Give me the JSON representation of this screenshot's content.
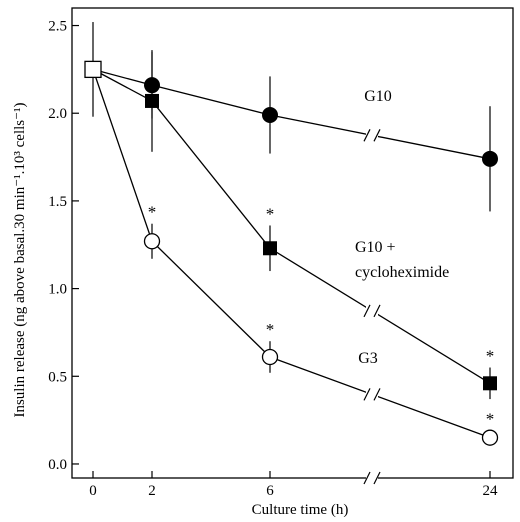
{
  "chart_data": {
    "type": "line",
    "xlabel": "Culture time (h)",
    "ylabel": "Insulin release (ng above  basal.30 min⁻¹.10³ cells⁻¹)",
    "x_ticks": [
      "0",
      "2",
      "6",
      "24"
    ],
    "y_ticks": [
      "0.0",
      "0.5",
      "1.0",
      "1.5",
      "2.0",
      "2.5"
    ],
    "ylim": [
      -0.08,
      2.6
    ],
    "x_axis_break": true,
    "grid": false,
    "initial_point": {
      "x": 0,
      "y": 2.25,
      "yerr": 0.27,
      "marker": "open-square"
    },
    "series": [
      {
        "name": "G10",
        "marker": "filled-circle",
        "points": [
          {
            "x": 2,
            "y": 2.16,
            "yerr": 0.19
          },
          {
            "x": 6,
            "y": 1.99,
            "yerr": 0.22
          },
          {
            "x": 24,
            "y": 1.74,
            "yerr": 0.3
          }
        ]
      },
      {
        "name": "G10 +\ncycloheximide",
        "marker": "filled-square",
        "points": [
          {
            "x": 2,
            "y": 2.07,
            "yerr": 0.29
          },
          {
            "x": 6,
            "y": 1.23,
            "yerr": 0.13,
            "sig": "*"
          },
          {
            "x": 24,
            "y": 0.46,
            "yerr": 0.09,
            "sig": "*"
          }
        ]
      },
      {
        "name": "G3",
        "marker": "open-circle",
        "points": [
          {
            "x": 2,
            "y": 1.27,
            "yerr": 0.1,
            "sig": "*"
          },
          {
            "x": 6,
            "y": 0.61,
            "yerr": 0.09,
            "sig": "*"
          },
          {
            "x": 24,
            "y": 0.15,
            "yerr": 0.04,
            "sig": "*"
          }
        ]
      }
    ]
  }
}
